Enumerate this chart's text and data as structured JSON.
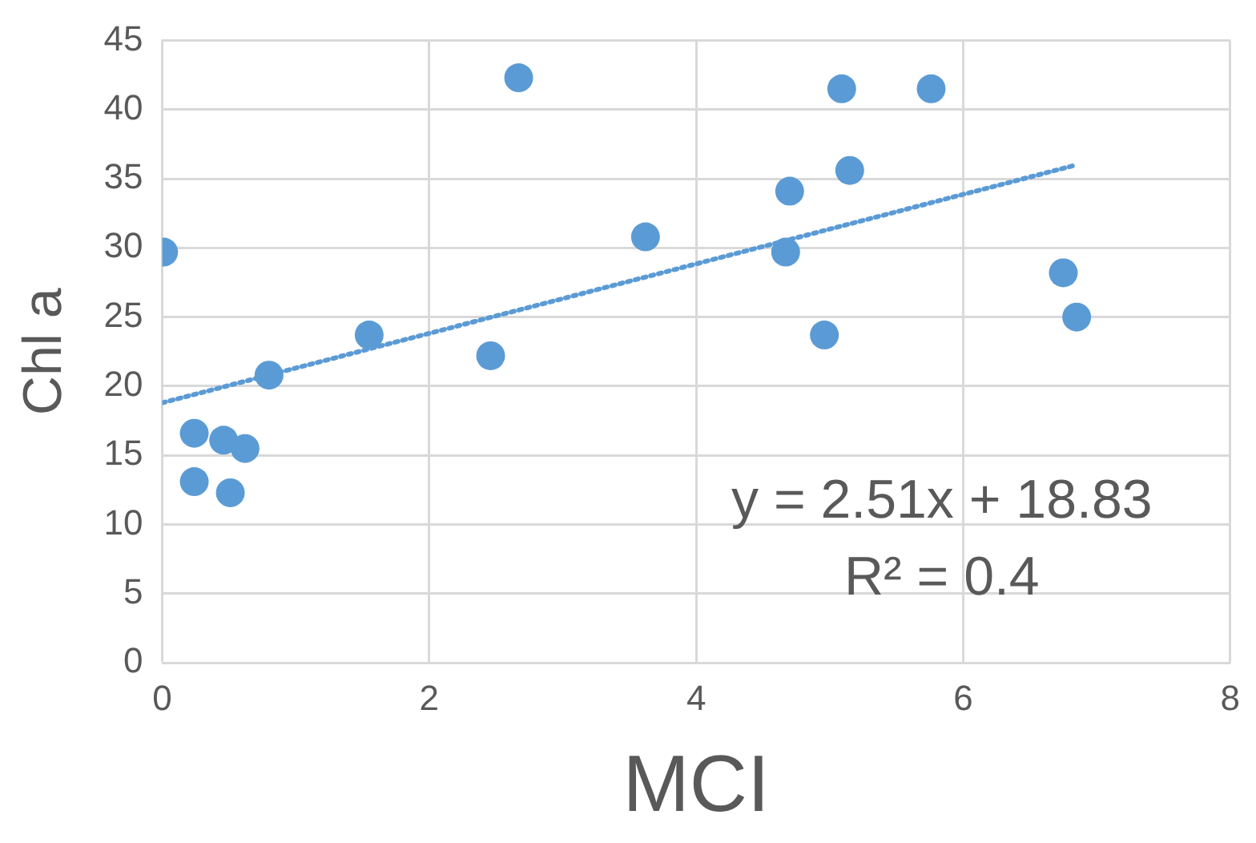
{
  "chart_data": {
    "type": "scatter",
    "xlabel": "MCI",
    "ylabel": "Chl a",
    "xlim": [
      0,
      8
    ],
    "xticks": [
      0,
      2,
      4,
      6,
      8
    ],
    "ylim": [
      0,
      45
    ],
    "yticks": [
      0,
      5,
      10,
      15,
      20,
      25,
      30,
      35,
      40,
      45
    ],
    "grid": true,
    "legend": false,
    "marker": "circle",
    "annotations": [
      "y = 2.51x + 18.83",
      "R² = 0.4"
    ],
    "series": [
      {
        "type": "scatter",
        "color": "#5b9bd5",
        "x": [
          0.01,
          0.24,
          0.24,
          0.46,
          0.51,
          0.62,
          0.8,
          1.55,
          2.46,
          2.67,
          3.62,
          4.67,
          4.7,
          4.96,
          5.09,
          5.15,
          5.76,
          6.75,
          6.85
        ],
        "values": [
          29.7,
          16.6,
          13.1,
          16.1,
          12.3,
          15.5,
          20.8,
          23.7,
          22.2,
          42.3,
          30.8,
          29.7,
          34.1,
          23.7,
          41.5,
          35.6,
          41.5,
          28.2,
          25.0
        ]
      },
      {
        "type": "line",
        "color": "#5b9bd5",
        "line_style": "dotted",
        "marker": "none",
        "x": [
          0,
          6.85
        ],
        "values": [
          18.8,
          36.0
        ]
      }
    ]
  }
}
